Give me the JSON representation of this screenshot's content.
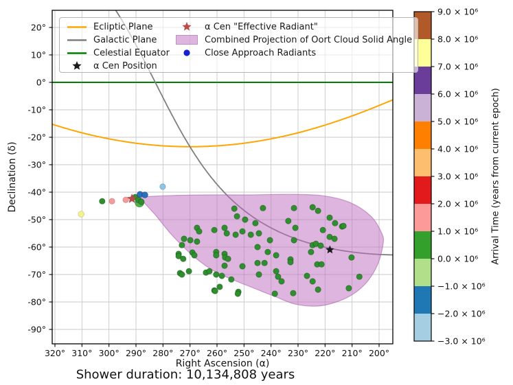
{
  "chart_data": {
    "type": "scatter",
    "title": "",
    "xlabel": "Right Ascension (α)",
    "ylabel": "Declination (δ)",
    "caption": "Shower duration: 10,134,808 years",
    "x_inverted": true,
    "xlim": [
      321,
      194.9
    ],
    "ylim": [
      -95.3,
      26.3
    ],
    "grid": true,
    "x_tick_values": [
      320,
      310,
      300,
      290,
      280,
      270,
      260,
      250,
      240,
      230,
      220,
      210,
      200
    ],
    "x_tick_labels": [
      "320°",
      "310°",
      "300°",
      "290°",
      "280°",
      "270°",
      "260°",
      "250°",
      "240°",
      "230°",
      "220°",
      "210°",
      "200°"
    ],
    "y_tick_values": [
      20,
      10,
      0,
      -10,
      -20,
      -30,
      -40,
      -50,
      -60,
      -70,
      -80,
      -90
    ],
    "y_tick_labels": [
      "20°",
      "10°",
      "0°",
      "-10°",
      "-20°",
      "-30°",
      "-40°",
      "-50°",
      "-60°",
      "-70°",
      "-80°",
      "-90°"
    ],
    "reference_lines": {
      "ecliptic": {
        "label": "Ecliptic Plane",
        "color": "#FFA500",
        "width": 2,
        "obliquity_deg": 23.44
      },
      "galactic": {
        "label": "Galactic Plane",
        "color": "#7F7F7F",
        "width": 1.8,
        "ngp_ra_deg": 192.86,
        "ngp_dec_deg": 27.13
      },
      "equator": {
        "label": "Celestial Equator",
        "color": "#008000",
        "width": 2,
        "dec_deg": 0
      }
    },
    "oort_region": {
      "label": "Combined Projection of Oort Cloud Solid Angle",
      "fill": "#bb6bbd",
      "fill_opacity": 0.5,
      "edge": "#a758a9",
      "edge_opacity": 0.55,
      "outline_ra_dec": [
        [
          288.2,
          -42.0
        ],
        [
          279.3,
          -41.3
        ],
        [
          264.1,
          -41.0
        ],
        [
          248.8,
          -41.0
        ],
        [
          233.6,
          -40.8
        ],
        [
          220.9,
          -41.3
        ],
        [
          210.7,
          -43.8
        ],
        [
          203.0,
          -48.8
        ],
        [
          199.0,
          -55.0
        ],
        [
          198.5,
          -58.8
        ],
        [
          200.5,
          -66.3
        ],
        [
          204.3,
          -72.5
        ],
        [
          209.4,
          -77.0
        ],
        [
          215.8,
          -80.0
        ],
        [
          222.9,
          -81.5
        ],
        [
          231.0,
          -80.8
        ],
        [
          238.6,
          -78.0
        ],
        [
          246.3,
          -75.0
        ],
        [
          253.9,
          -72.0
        ],
        [
          261.5,
          -68.5
        ],
        [
          269.1,
          -63.0
        ],
        [
          276.8,
          -55.5
        ],
        [
          282.4,
          -48.8
        ],
        [
          286.5,
          -44.3
        ]
      ]
    },
    "series": [
      {
        "name": "cluster-halo-radiant",
        "color": "#55b04b",
        "r": 6.5,
        "edge": "rgba(20,80,20,0.45)",
        "points": [
          [
            288.7,
            -43.8
          ]
        ]
      },
      {
        "name": "radiants-arrival-0-1My",
        "color": "#2f8f2f",
        "r": 4.2,
        "edge": "rgba(10,60,10,0.45)",
        "points": [
          [
            253.6,
            -46
          ],
          [
            252.6,
            -48.8
          ],
          [
            249.6,
            -50
          ],
          [
            245.8,
            -51.3
          ],
          [
            267.4,
            -53
          ],
          [
            266.6,
            -54.3
          ],
          [
            261,
            -53.8
          ],
          [
            257.2,
            -53
          ],
          [
            256.4,
            -55
          ],
          [
            253.1,
            -55.5
          ],
          [
            250.6,
            -54.3
          ],
          [
            247.5,
            -55.5
          ],
          [
            244.5,
            -55
          ],
          [
            272.2,
            -57
          ],
          [
            269.9,
            -57.5
          ],
          [
            267.4,
            -58
          ],
          [
            273,
            -59.3
          ],
          [
            269.1,
            -62
          ],
          [
            274.2,
            -62.5
          ],
          [
            260.3,
            -61.8
          ],
          [
            257.2,
            -62.5
          ],
          [
            245,
            -60
          ],
          [
            243,
            -45.8
          ],
          [
            231.5,
            -45.8
          ],
          [
            224.6,
            -45.5
          ],
          [
            222.6,
            -46.8
          ],
          [
            218.3,
            -49.3
          ],
          [
            233.6,
            -50.5
          ],
          [
            216.3,
            -51.3
          ],
          [
            213.7,
            -52.5
          ],
          [
            231,
            -53
          ],
          [
            220.8,
            -53.8
          ],
          [
            240.4,
            -57.5
          ],
          [
            231.5,
            -57.5
          ],
          [
            218.3,
            -56.3
          ],
          [
            216.5,
            -57
          ],
          [
            224.6,
            -59.3
          ],
          [
            223.4,
            -58.8
          ],
          [
            221.6,
            -59.5
          ],
          [
            241.2,
            -61.8
          ],
          [
            238.1,
            -63
          ],
          [
            232.8,
            -64.5
          ],
          [
            225.2,
            -61.8
          ],
          [
            213.2,
            -52.3
          ],
          [
            274.2,
            -63.3
          ],
          [
            272.5,
            -64.3
          ],
          [
            268.4,
            -63
          ],
          [
            260.3,
            -63
          ],
          [
            257,
            -63.8
          ],
          [
            255.9,
            -64.3
          ],
          [
            257.2,
            -66.8
          ],
          [
            250.6,
            -67
          ],
          [
            245,
            -65.8
          ],
          [
            244.5,
            -70
          ],
          [
            273.7,
            -69.5
          ],
          [
            273,
            -70
          ],
          [
            270.4,
            -68.8
          ],
          [
            264.1,
            -69.3
          ],
          [
            262.8,
            -68.8
          ],
          [
            260.3,
            -70
          ],
          [
            258.2,
            -70.5
          ],
          [
            254.7,
            -71.8
          ],
          [
            259,
            -74.5
          ],
          [
            261,
            -75.8
          ],
          [
            252.1,
            -76.3
          ],
          [
            252.3,
            -77
          ],
          [
            260.7,
            -76
          ],
          [
            242.4,
            -65.8
          ],
          [
            232.8,
            -65.5
          ],
          [
            222.9,
            -66.3
          ],
          [
            221.3,
            -66.3
          ],
          [
            210.2,
            -63.8
          ],
          [
            238.1,
            -68.8
          ],
          [
            237.4,
            -70.8
          ],
          [
            236.1,
            -72.5
          ],
          [
            226.7,
            -70.5
          ],
          [
            224.6,
            -72.5
          ],
          [
            207.3,
            -70.8
          ],
          [
            222.6,
            -75.5
          ],
          [
            211.2,
            -75
          ],
          [
            231.8,
            -76.8
          ],
          [
            238.6,
            -77
          ],
          [
            302.5,
            -43.3
          ],
          [
            290.3,
            -41.8
          ],
          [
            289.2,
            -42.8
          ],
          [
            288,
            -43.5
          ]
        ]
      },
      {
        "name": "radiants-arrival-1-2My",
        "color": "#f69b9a",
        "r": 4.2,
        "edge": "rgba(150,60,60,0.4)",
        "points": [
          [
            298.9,
            -43.3
          ],
          [
            293.8,
            -42.8
          ]
        ]
      },
      {
        "name": "radiants-arrival-7-8My",
        "color": "#f2f294",
        "r": 4.4,
        "edge": "rgba(160,160,60,0.45)",
        "points": [
          [
            310.3,
            -48
          ]
        ]
      },
      {
        "name": "radiants-arrival-neg3-neg2My",
        "color": "#8ec6e6",
        "r": 4.2,
        "edge": "rgba(50,100,140,0.4)",
        "points": [
          [
            280.1,
            -38
          ]
        ]
      },
      {
        "name": "close-approach-radiants",
        "color": "#2b6fbd",
        "r": 4.4,
        "edge": "rgba(10,40,110,0.5)",
        "points": [
          [
            288.5,
            -40.8
          ],
          [
            286.7,
            -41
          ]
        ]
      }
    ],
    "special_markers": [
      {
        "name": "alpha-cen-effective-radiant",
        "label": "α Cen \"Effective Radiant\"",
        "marker": "star",
        "color": "#b84b4b",
        "ra": 291.5,
        "dec": -42.4,
        "size": 7.5
      },
      {
        "name": "alpha-cen-position",
        "label": "α Cen Position",
        "marker": "star",
        "color": "#1a1a1a",
        "ra": 218.2,
        "dec": -61.0,
        "size": 6.5
      }
    ],
    "colorbar": {
      "label": "Arrival Time (years from current epoch)",
      "vmin": -3,
      "vmax": 9,
      "units": "1e6 years",
      "tick_values": [
        9,
        8,
        7,
        6,
        5,
        4,
        3,
        2,
        1,
        0,
        -1,
        -2,
        -3
      ],
      "tick_labels": [
        "9.0 × 10⁶",
        "8.0 × 10⁶",
        "7.0 × 10⁶",
        "6.0 × 10⁶",
        "5.0 × 10⁶",
        "4.0 × 10⁶",
        "3.0 × 10⁶",
        "2.0 × 10⁶",
        "1.0 × 10⁶",
        "0.0 × 10⁶",
        "−1.0 × 10⁶",
        "−2.0 × 10⁶",
        "−3.0 × 10⁶"
      ],
      "segments": [
        {
          "range": [
            8,
            9
          ],
          "color": "#b15928"
        },
        {
          "range": [
            7,
            8
          ],
          "color": "#ffff99"
        },
        {
          "range": [
            6,
            7
          ],
          "color": "#6a3d9a"
        },
        {
          "range": [
            5,
            6
          ],
          "color": "#cab2d6"
        },
        {
          "range": [
            4,
            5
          ],
          "color": "#ff7f00"
        },
        {
          "range": [
            3,
            4
          ],
          "color": "#fdbf6f"
        },
        {
          "range": [
            2,
            3
          ],
          "color": "#e31a1c"
        },
        {
          "range": [
            1,
            2
          ],
          "color": "#fb9a99"
        },
        {
          "range": [
            0,
            1
          ],
          "color": "#33a02c"
        },
        {
          "range": [
            -1,
            0
          ],
          "color": "#b2df8a"
        },
        {
          "range": [
            -2,
            -1
          ],
          "color": "#1f78b4"
        },
        {
          "range": [
            -3,
            -2
          ],
          "color": "#a6cee3"
        }
      ]
    }
  },
  "legend": {
    "items": [
      {
        "label": "Ecliptic Plane",
        "marker": "line",
        "color": "#FFA500"
      },
      {
        "label": "Galactic Plane",
        "marker": "line",
        "color": "#7F7F7F"
      },
      {
        "label": "Celestial Equator",
        "marker": "line",
        "color": "#008000"
      },
      {
        "label": "α Cen Position",
        "marker": "star",
        "color": "#1a1a1a"
      },
      {
        "label": "α Cen \"Effective Radiant\"",
        "marker": "star",
        "color": "#b84b4b"
      },
      {
        "label": "Combined Projection of Oort Cloud Solid Angle",
        "marker": "patch",
        "color": "#bb6bbd"
      },
      {
        "label": "Close Approach Radiants",
        "marker": "dot",
        "color": "#1522cf"
      }
    ]
  }
}
